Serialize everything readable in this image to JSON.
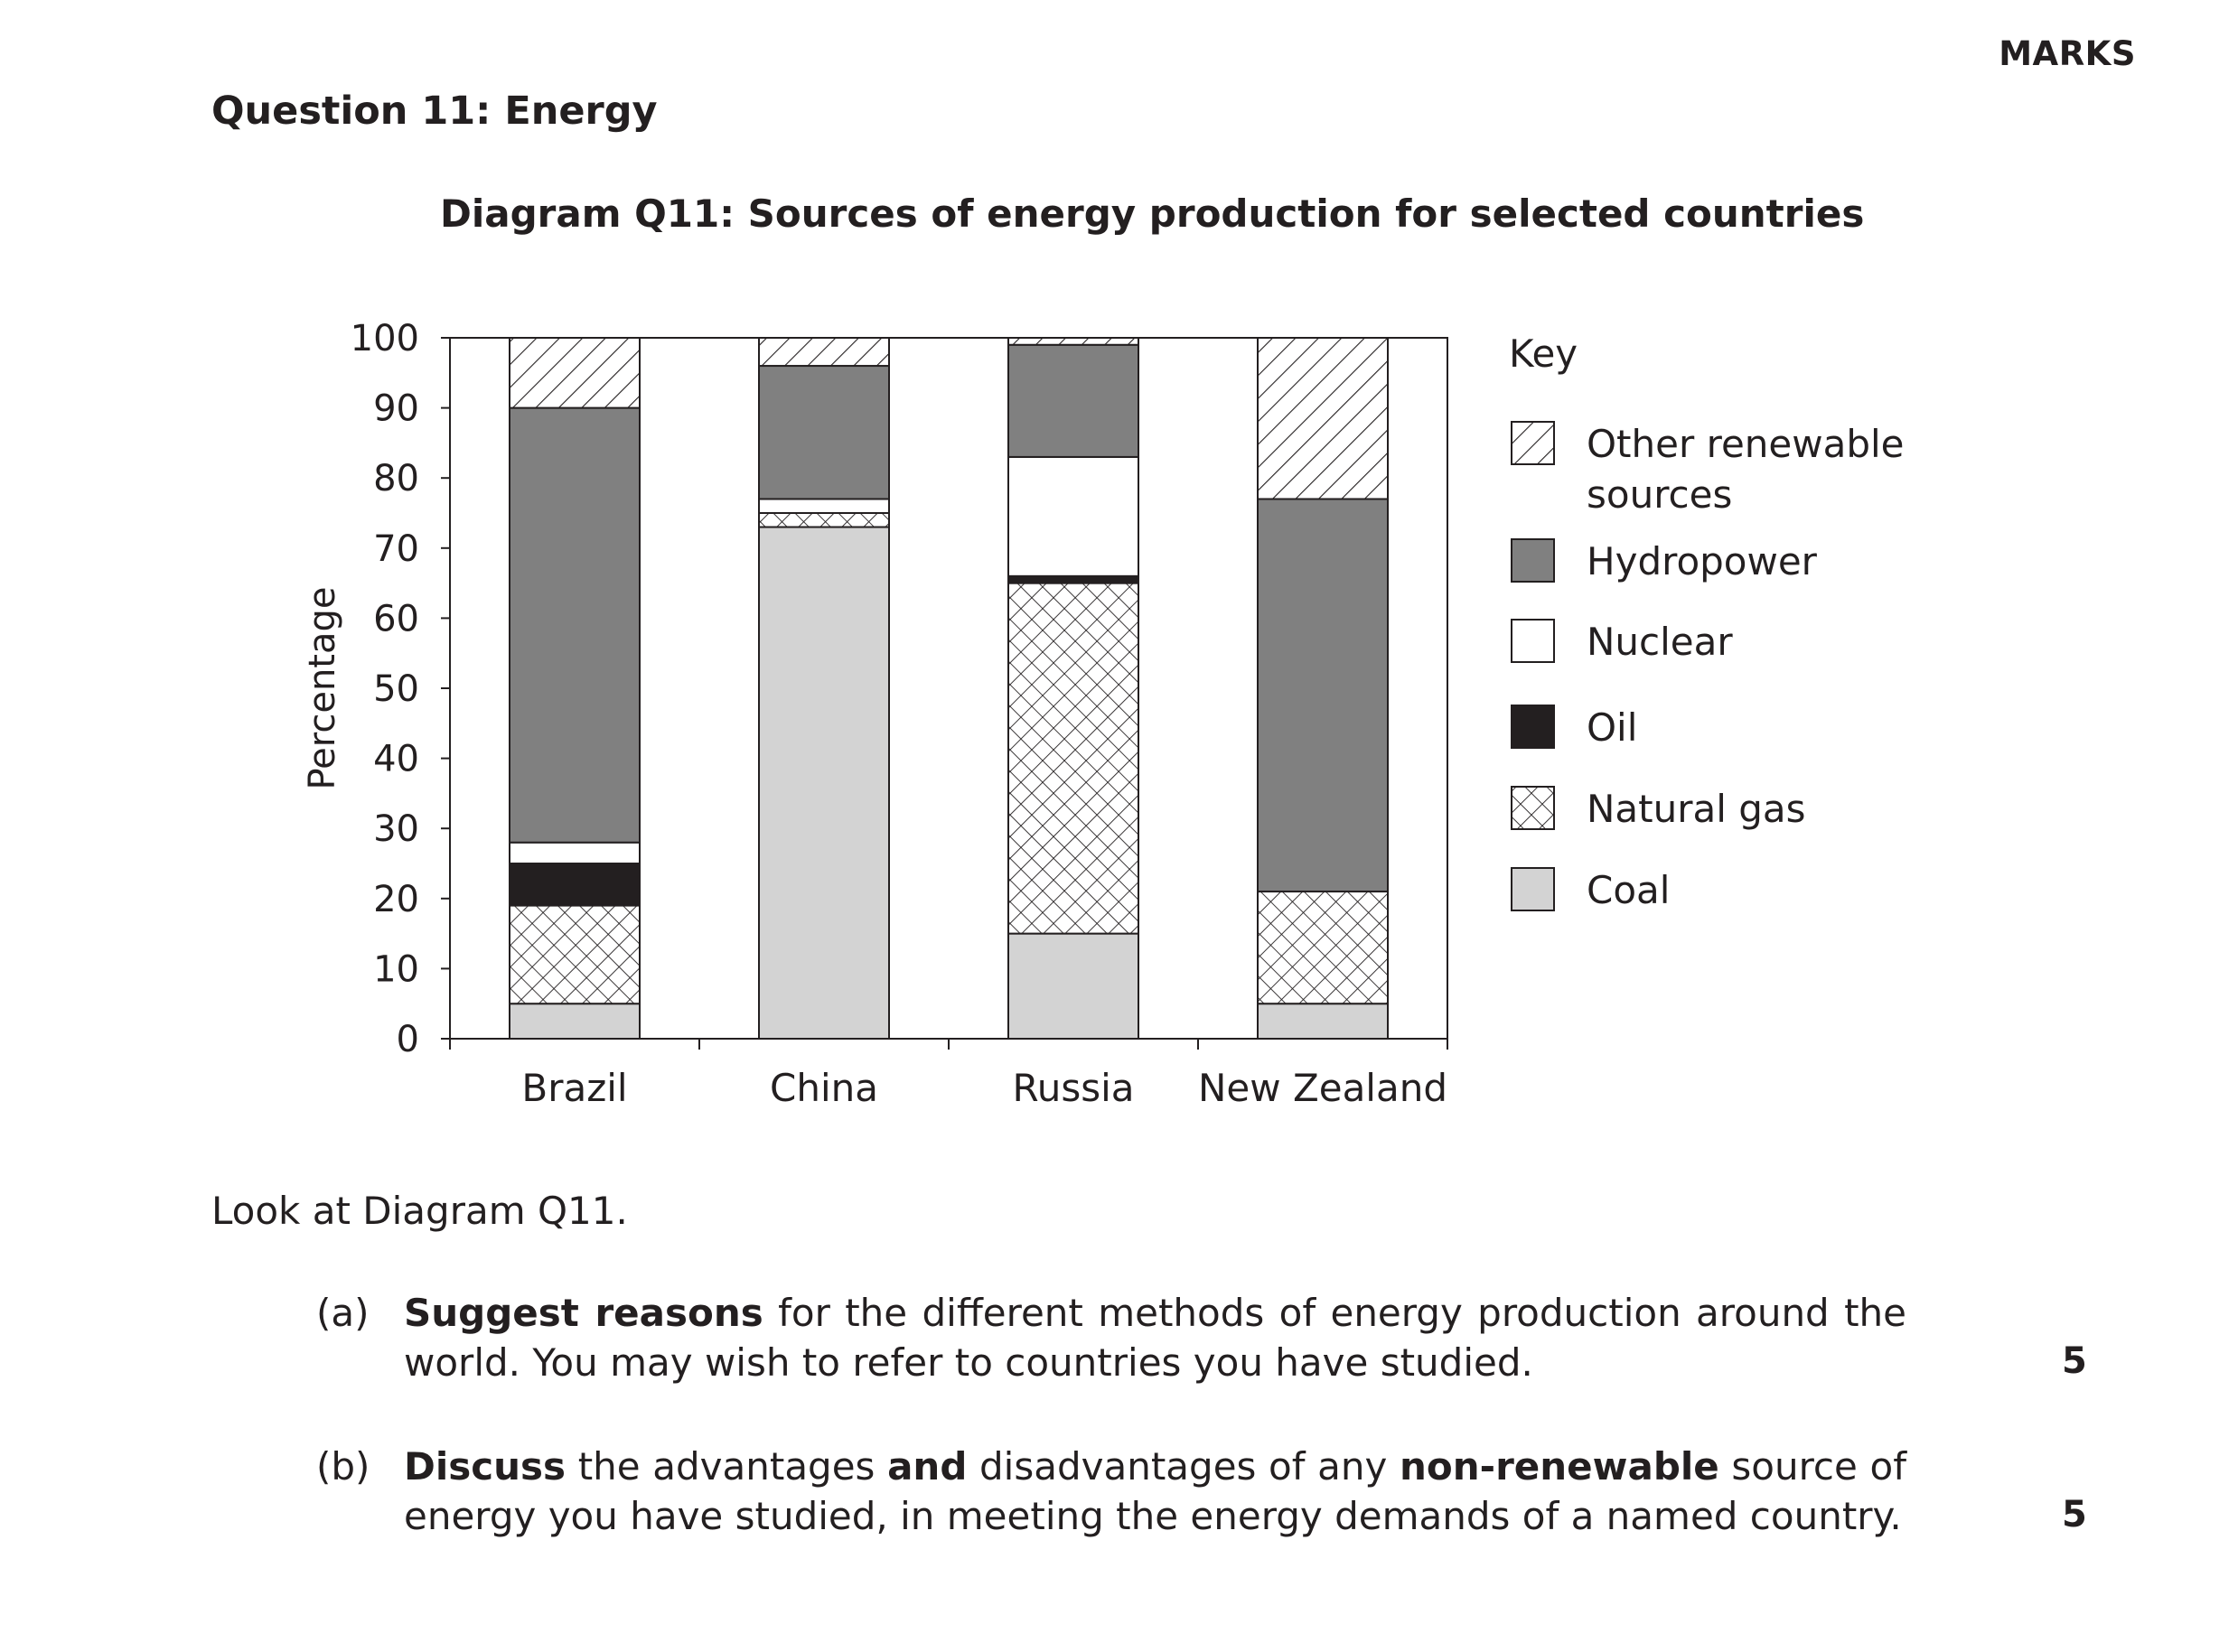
{
  "header": {
    "marks_label": "MARKS"
  },
  "question": {
    "title": "Question 11: Energy",
    "diagram_title": "Diagram Q11: Sources of energy production for selected countries"
  },
  "chart_data": {
    "type": "bar",
    "stacked": true,
    "title": "Diagram Q11: Sources of energy production for selected countries",
    "xlabel": "",
    "ylabel": "Percentage",
    "ylim": [
      0,
      100
    ],
    "yticks": [
      0,
      10,
      20,
      30,
      40,
      50,
      60,
      70,
      80,
      90,
      100
    ],
    "categories": [
      "Brazil",
      "China",
      "Russia",
      "New Zealand"
    ],
    "legend_title": "Key",
    "legend_position": "right",
    "grid": false,
    "series": [
      {
        "name": "Coal",
        "pattern": "light-grey",
        "color": "#d3d3d3",
        "values": [
          5,
          73,
          15,
          5
        ]
      },
      {
        "name": "Natural gas",
        "pattern": "cross-hatch",
        "color": "#ffffff",
        "values": [
          14,
          2,
          50,
          16
        ]
      },
      {
        "name": "Oil",
        "pattern": "solid-black",
        "color": "#231f20",
        "values": [
          6,
          0,
          1,
          0
        ]
      },
      {
        "name": "Nuclear",
        "pattern": "white",
        "color": "#ffffff",
        "values": [
          3,
          2,
          17,
          0
        ]
      },
      {
        "name": "Hydropower",
        "pattern": "dark-grey",
        "color": "#808080",
        "values": [
          62,
          19,
          16,
          56
        ]
      },
      {
        "name": "Other renewable sources",
        "pattern": "diagonal-hatch",
        "color": "#ffffff",
        "values": [
          10,
          4,
          1,
          23
        ]
      }
    ],
    "legend_order": [
      "Other renewable sources",
      "Hydropower",
      "Nuclear",
      "Oil",
      "Natural gas",
      "Coal"
    ],
    "legend_lines": {
      "Other renewable sources": [
        "Other renewable",
        "sources"
      ]
    }
  },
  "prompt": {
    "look_text": "Look at Diagram Q11."
  },
  "parts": {
    "a": {
      "label": "(a)",
      "bold1": "Suggest reasons",
      "text1": " for the different methods of energy production around the",
      "line2": "world. You may wish to refer to countries you have studied.",
      "marks": "5"
    },
    "b": {
      "label": "(b)",
      "bold1": "Discuss",
      "text1": " the advantages ",
      "bold2": "and",
      "text2": " disadvantages of any ",
      "bold3": "non-renewable",
      "text3": " source of",
      "line2": "energy you have studied, in meeting the energy demands of a named country.",
      "marks": "5"
    }
  }
}
